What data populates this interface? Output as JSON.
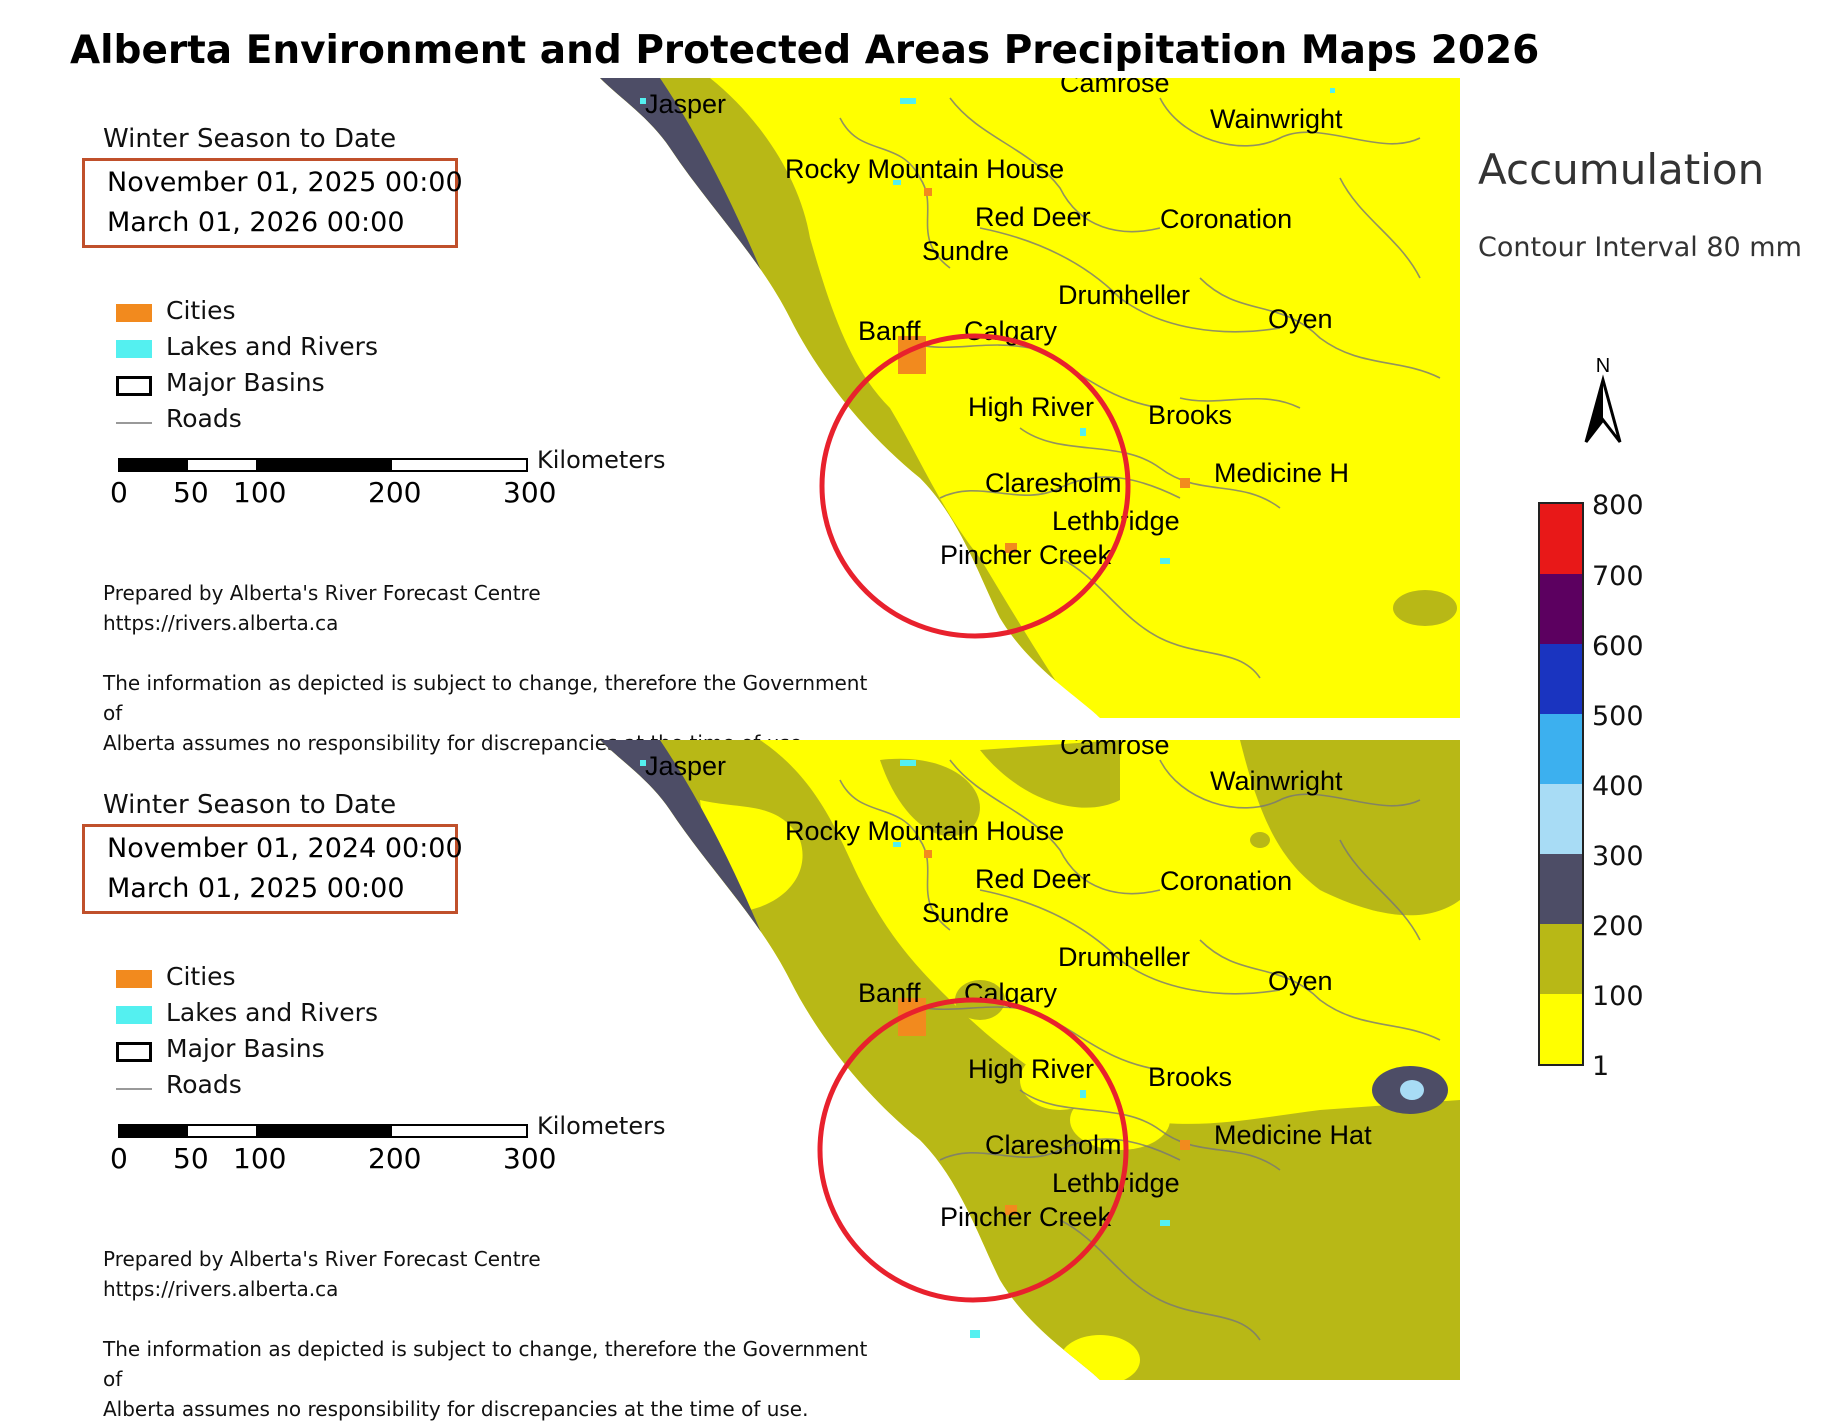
{
  "title": "Alberta Environment and Protected Areas Precipitation Maps 2026",
  "colors": {
    "cities": "#f28a1e",
    "lakes_rivers": "#54f0f0",
    "date_box_border": "#c0502b",
    "highlight_circle": "#e8212d",
    "class_1_100": "#ffff00",
    "class_100_200": "#b8b816",
    "class_200_300": "#4d4d66",
    "class_300_400": "#a8dcf5",
    "class_400_500": "#3cb0ef",
    "class_500_600": "#1a34c0",
    "class_600_700": "#5c0060",
    "class_700_800": "#e81818"
  },
  "legend": {
    "items": [
      {
        "label": "Cities",
        "icon": "orange-swatch"
      },
      {
        "label": "Lakes and Rivers",
        "icon": "cyan-swatch"
      },
      {
        "label": "Major Basins",
        "icon": "outline-box"
      },
      {
        "label": "Roads",
        "icon": "gray-line"
      }
    ],
    "scale_unit": "Kilometers",
    "scale_ticks": [
      "0",
      "50",
      "100",
      "200",
      "300"
    ]
  },
  "panels": [
    {
      "season_label": "Winter Season to Date",
      "start": "November 01, 2025 00:00",
      "end": "March 01, 2026 00:00",
      "prepared_by": "Prepared by Alberta's River Forecast Centre",
      "url": "https://rivers.alberta.ca",
      "disclaimer_line1": "The information as depicted is subject to change, therefore the Government of",
      "disclaimer_line2": "Alberta assumes no responsibility for discrepancies at the time of use.",
      "places": [
        "Jasper",
        "Camrose",
        "Wainwright",
        "Rocky Mountain House",
        "Red Deer",
        "Coronation",
        "Sundre",
        "Drumheller",
        "Oyen",
        "Banff",
        "Calgary",
        "High River",
        "Brooks",
        "Claresholm",
        "Medicine H",
        "Lethbridge",
        "Pincher Creek"
      ]
    },
    {
      "season_label": "Winter Season to Date",
      "start": "November 01, 2024 00:00",
      "end": "March 01, 2025 00:00",
      "prepared_by": "Prepared by Alberta's River Forecast Centre",
      "url": "https://rivers.alberta.ca",
      "disclaimer_line1": "The information as depicted is subject to change, therefore the Government of",
      "disclaimer_line2": "Alberta assumes no responsibility for discrepancies at the time of use.",
      "places": [
        "Jasper",
        "Camrose",
        "Wainwright",
        "Rocky Mountain House",
        "Red Deer",
        "Coronation",
        "Sundre",
        "Drumheller",
        "Oyen",
        "Banff",
        "Calgary",
        "High River",
        "Brooks",
        "Claresholm",
        "Medicine Hat",
        "Lethbridge",
        "Pincher Creek"
      ]
    }
  ],
  "accumulation": {
    "title": "Accumulation",
    "contour_interval": "Contour Interval 80 mm",
    "north_label": "N",
    "color_bar_labels": [
      "800",
      "700",
      "600",
      "500",
      "400",
      "300",
      "200",
      "100",
      "1"
    ]
  }
}
